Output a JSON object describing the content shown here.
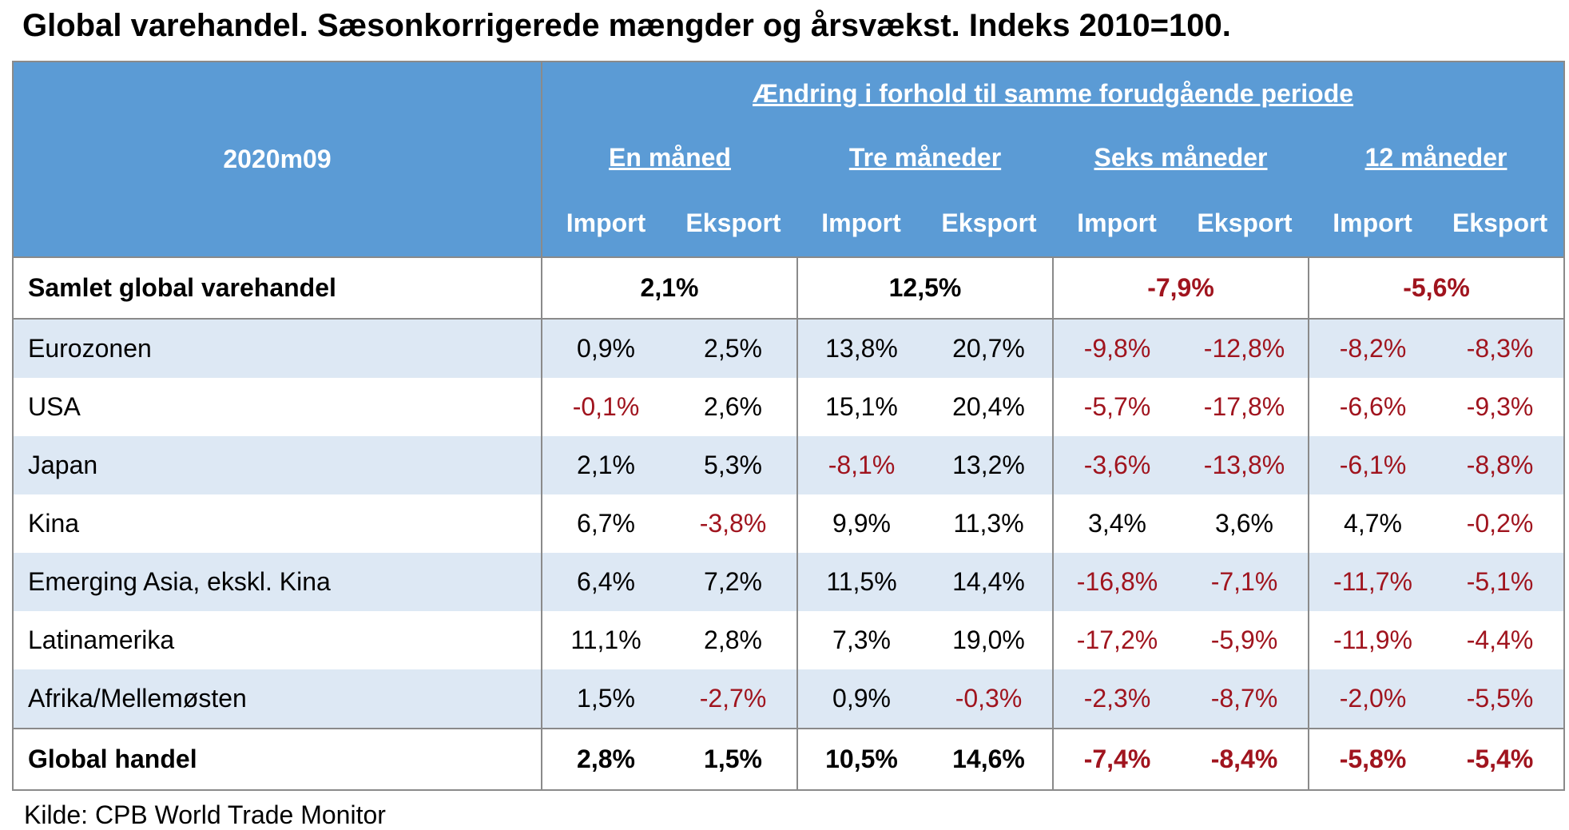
{
  "title": "Global varehandel. Sæsonkorrigerede mængder og årsvækst. Indeks 2010=100.",
  "table": {
    "corner": "2020m09",
    "group_header": "Ændring i forhold til samme forudgående periode",
    "groups": [
      "En måned",
      "Tre måneder",
      "Seks måneder",
      "12 måneder"
    ],
    "subheaders": [
      "Import",
      "Eksport",
      "Import",
      "Eksport",
      "Import",
      "Eksport",
      "Import",
      "Eksport"
    ],
    "total_row": {
      "label": "Samlet global varehandel",
      "values": [
        "2,1%",
        "12,5%",
        "-7,9%",
        "-5,6%"
      ]
    },
    "rows": [
      {
        "label": "Eurozonen",
        "values": [
          "0,9%",
          "2,5%",
          "13,8%",
          "20,7%",
          "-9,8%",
          "-12,8%",
          "-8,2%",
          "-8,3%"
        ]
      },
      {
        "label": "USA",
        "values": [
          "-0,1%",
          "2,6%",
          "15,1%",
          "20,4%",
          "-5,7%",
          "-17,8%",
          "-6,6%",
          "-9,3%"
        ]
      },
      {
        "label": "Japan",
        "values": [
          "2,1%",
          "5,3%",
          "-8,1%",
          "13,2%",
          "-3,6%",
          "-13,8%",
          "-6,1%",
          "-8,8%"
        ]
      },
      {
        "label": "Kina",
        "values": [
          "6,7%",
          "-3,8%",
          "9,9%",
          "11,3%",
          "3,4%",
          "3,6%",
          "4,7%",
          "-0,2%"
        ]
      },
      {
        "label": "Emerging Asia, ekskl. Kina",
        "values": [
          "6,4%",
          "7,2%",
          "11,5%",
          "14,4%",
          "-16,8%",
          "-7,1%",
          "-11,7%",
          "-5,1%"
        ]
      },
      {
        "label": "Latinamerika",
        "values": [
          "11,1%",
          "2,8%",
          "7,3%",
          "19,0%",
          "-17,2%",
          "-5,9%",
          "-11,9%",
          "-4,4%"
        ]
      },
      {
        "label": "Afrika/Mellemøsten",
        "values": [
          "1,5%",
          "-2,7%",
          "0,9%",
          "-0,3%",
          "-2,3%",
          "-8,7%",
          "-2,0%",
          "-5,5%"
        ]
      }
    ],
    "footer_row": {
      "label": "Global handel",
      "values": [
        "2,8%",
        "1,5%",
        "10,5%",
        "14,6%",
        "-7,4%",
        "-8,4%",
        "-5,8%",
        "-5,4%"
      ]
    }
  },
  "source": "Kilde: CPB World Trade Monitor"
}
